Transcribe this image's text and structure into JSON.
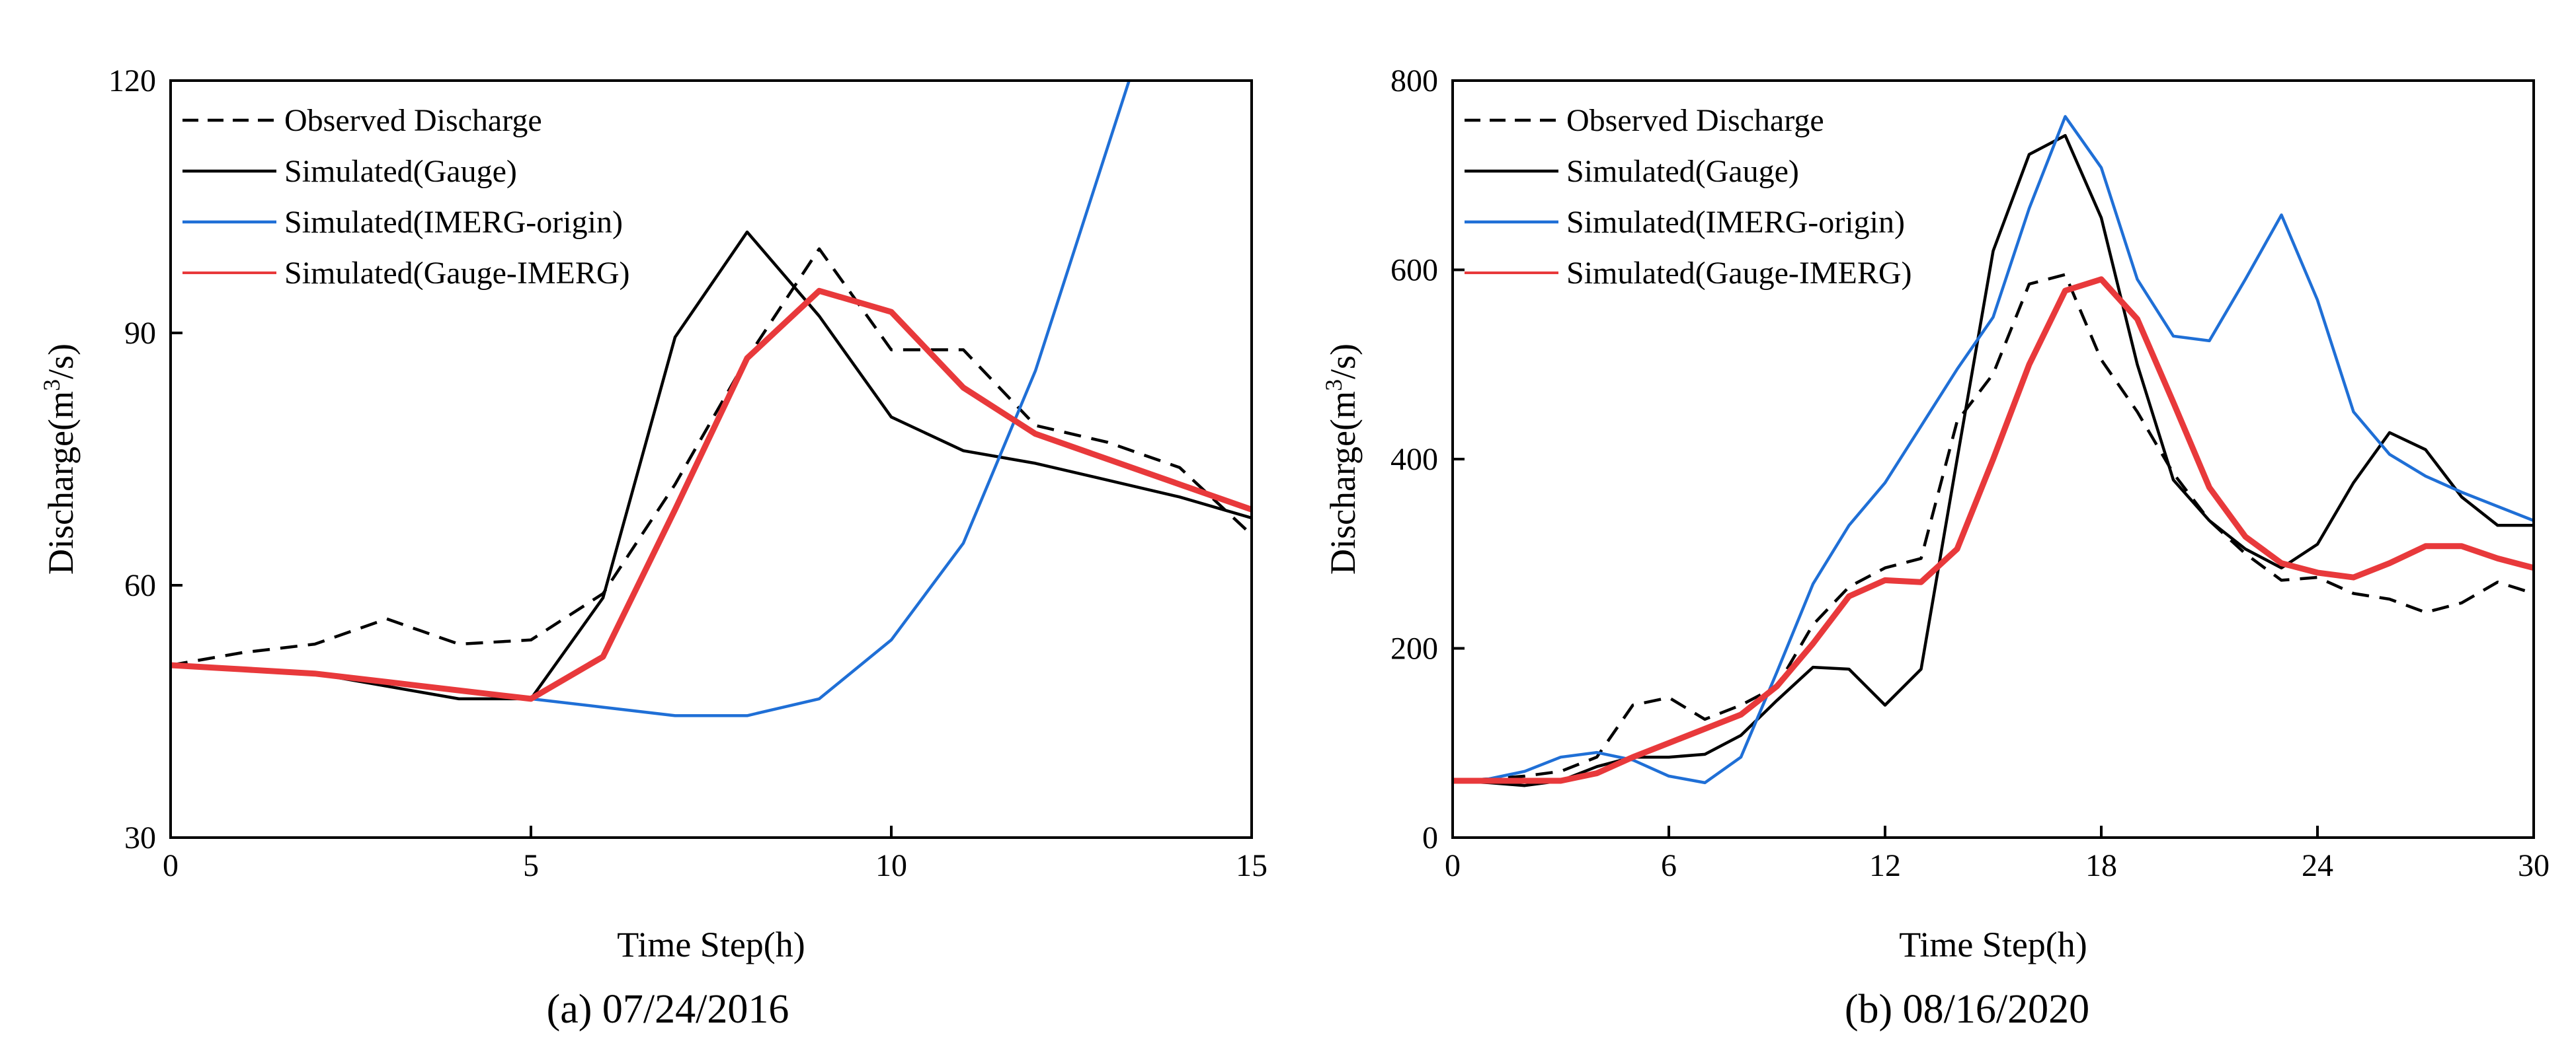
{
  "chart_data": [
    {
      "type": "line",
      "caption": "(a) 07/24/2016",
      "xlabel": "Time Step(h)",
      "ylabel_prefix": "Discharge(m",
      "ylabel_sup": "3",
      "ylabel_suffix": "/s)",
      "xlim": [
        0,
        15
      ],
      "ylim": [
        30,
        120
      ],
      "xticks": [
        "0",
        "5",
        "10",
        "15"
      ],
      "yticks": [
        "30",
        "60",
        "90",
        "120"
      ],
      "legend_position": "top-left",
      "series": [
        {
          "name": "Observed Discharge",
          "color": "#000000",
          "style": "dashed",
          "x": [
            0,
            1,
            2,
            3,
            4,
            5,
            6,
            7,
            8,
            9,
            10,
            11,
            12,
            13,
            14,
            15
          ],
          "y": [
            50.5,
            52,
            53,
            56,
            53,
            53.5,
            59,
            72,
            87,
            100,
            88,
            88,
            79,
            77,
            74,
            66
          ]
        },
        {
          "name": "Simulated(Gauge)",
          "color": "#000000",
          "style": "solid",
          "x": [
            0,
            1,
            2,
            3,
            4,
            5,
            6,
            7,
            8,
            9,
            10,
            11,
            12,
            13,
            14,
            15
          ],
          "y": [
            50.5,
            50,
            49.5,
            48,
            46.5,
            46.5,
            58.5,
            89.5,
            102,
            92,
            80,
            76,
            74.5,
            72.5,
            70.5,
            68
          ]
        },
        {
          "name": "Simulated(IMERG-origin)",
          "color": "#1f6fd6",
          "style": "solid",
          "x": [
            0,
            1,
            2,
            3,
            4,
            5,
            6,
            7,
            8,
            9,
            10,
            11,
            12,
            13.3
          ],
          "y": [
            50.5,
            50,
            49.5,
            48.5,
            47.5,
            46.5,
            45.5,
            44.5,
            44.5,
            46.5,
            53.5,
            65,
            85.5,
            120
          ]
        },
        {
          "name": "Simulated(Gauge-IMERG)",
          "color": "#e8393b",
          "style": "solid",
          "x": [
            0,
            1,
            2,
            3,
            4,
            5,
            6,
            7,
            8,
            9,
            10,
            11,
            12,
            13,
            14,
            15
          ],
          "y": [
            50.5,
            50,
            49.5,
            48.5,
            47.5,
            46.5,
            51.5,
            69,
            87,
            95,
            92.5,
            83.5,
            78,
            75,
            72,
            69
          ]
        }
      ]
    },
    {
      "type": "line",
      "caption": "(b) 08/16/2020",
      "xlabel": "Time Step(h)",
      "ylabel_prefix": "Discharge(m",
      "ylabel_sup": "3",
      "ylabel_suffix": "/s)",
      "xlim": [
        0,
        30
      ],
      "ylim": [
        0,
        800
      ],
      "xticks": [
        "0",
        "6",
        "12",
        "18",
        "24",
        "30"
      ],
      "yticks": [
        "0",
        "200",
        "400",
        "600",
        "800"
      ],
      "legend_position": "top-left",
      "series": [
        {
          "name": "Observed Discharge",
          "color": "#000000",
          "style": "dashed",
          "x": [
            0,
            1,
            2,
            3,
            4,
            5,
            6,
            7,
            8,
            9,
            10,
            11,
            12,
            13,
            14,
            15,
            16,
            17,
            18,
            19,
            20,
            21,
            22,
            23,
            24,
            25,
            26,
            27,
            28,
            29,
            30
          ],
          "y": [
            60,
            62,
            65,
            70,
            85,
            140,
            148,
            125,
            140,
            160,
            225,
            265,
            285,
            295,
            440,
            490,
            585,
            595,
            505,
            450,
            385,
            335,
            300,
            272,
            275,
            258,
            252,
            238,
            248,
            270,
            258
          ]
        },
        {
          "name": "Simulated(Gauge)",
          "color": "#000000",
          "style": "solid",
          "x": [
            0,
            1,
            2,
            3,
            4,
            5,
            6,
            7,
            8,
            9,
            10,
            11,
            12,
            13,
            14,
            15,
            16,
            17,
            18,
            19,
            20,
            21,
            22,
            23,
            24,
            25,
            26,
            27,
            28,
            29,
            30
          ],
          "y": [
            60,
            58,
            55,
            60,
            75,
            85,
            85,
            88,
            108,
            145,
            180,
            178,
            140,
            178,
            400,
            620,
            722,
            742,
            655,
            500,
            378,
            335,
            305,
            285,
            310,
            375,
            428,
            410,
            360,
            330,
            330
          ]
        },
        {
          "name": "Simulated(IMERG-origin)",
          "color": "#1f6fd6",
          "style": "solid",
          "x": [
            0,
            1,
            2,
            3,
            4,
            5,
            6,
            7,
            8,
            9,
            10,
            11,
            12,
            13,
            14,
            15,
            16,
            17,
            18,
            19,
            20,
            21,
            22,
            23,
            24,
            25,
            26,
            27,
            28,
            29,
            30
          ],
          "y": [
            60,
            62,
            70,
            85,
            90,
            82,
            65,
            58,
            85,
            175,
            268,
            330,
            375,
            435,
            495,
            550,
            665,
            762,
            708,
            590,
            530,
            525,
            590,
            658,
            568,
            450,
            405,
            382,
            365,
            350,
            335
          ]
        },
        {
          "name": "Simulated(Gauge-IMERG)",
          "color": "#e8393b",
          "style": "solid",
          "x": [
            0,
            1,
            2,
            3,
            4,
            5,
            6,
            7,
            8,
            9,
            10,
            11,
            12,
            13,
            14,
            15,
            16,
            17,
            18,
            19,
            20,
            21,
            22,
            23,
            24,
            25,
            26,
            27,
            28,
            29,
            30
          ],
          "y": [
            60,
            60,
            60,
            60,
            68,
            85,
            100,
            115,
            130,
            160,
            205,
            255,
            272,
            270,
            305,
            400,
            500,
            578,
            590,
            548,
            460,
            370,
            318,
            290,
            280,
            275,
            290,
            308,
            308,
            295,
            285
          ]
        }
      ]
    }
  ]
}
